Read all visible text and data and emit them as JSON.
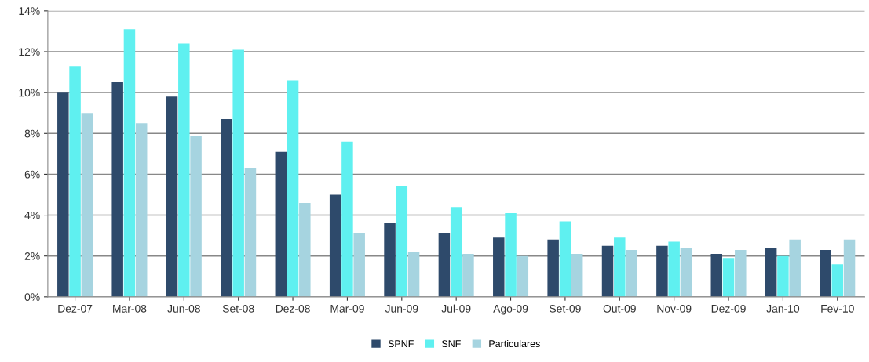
{
  "chart_data": {
    "type": "bar",
    "categories": [
      "Dez-07",
      "Mar-08",
      "Jun-08",
      "Set-08",
      "Dez-08",
      "Mar-09",
      "Jun-09",
      "Jul-09",
      "Ago-09",
      "Set-09",
      "Out-09",
      "Nov-09",
      "Dez-09",
      "Jan-10",
      "Fev-10"
    ],
    "series": [
      {
        "name": "SPNF",
        "color": "#2e4a6b",
        "values": [
          10.0,
          10.5,
          9.8,
          8.7,
          7.1,
          5.0,
          3.6,
          3.1,
          2.9,
          2.8,
          2.5,
          2.5,
          2.1,
          2.4,
          2.3
        ]
      },
      {
        "name": "SNF",
        "color": "#5ff0f0",
        "values": [
          11.3,
          13.1,
          12.4,
          12.1,
          10.6,
          7.6,
          5.4,
          4.4,
          4.1,
          3.7,
          2.9,
          2.7,
          1.9,
          2.0,
          1.6
        ]
      },
      {
        "name": "Particulares",
        "color": "#a6d4e0",
        "values": [
          9.0,
          8.5,
          7.9,
          6.3,
          4.6,
          3.1,
          2.2,
          2.1,
          2.0,
          2.1,
          2.3,
          2.4,
          2.3,
          2.8,
          2.8
        ]
      }
    ],
    "ylim": [
      0,
      14
    ],
    "yticks": [
      {
        "value": 0,
        "label": "0%"
      },
      {
        "value": 2,
        "label": "2%"
      },
      {
        "value": 4,
        "label": "4%"
      },
      {
        "value": 6,
        "label": "6%"
      },
      {
        "value": 8,
        "label": "8%"
      },
      {
        "value": 10,
        "label": "10%"
      },
      {
        "value": 12,
        "label": "12%"
      },
      {
        "value": 14,
        "label": "14%"
      }
    ],
    "grid": "y",
    "legend": "bottom"
  }
}
